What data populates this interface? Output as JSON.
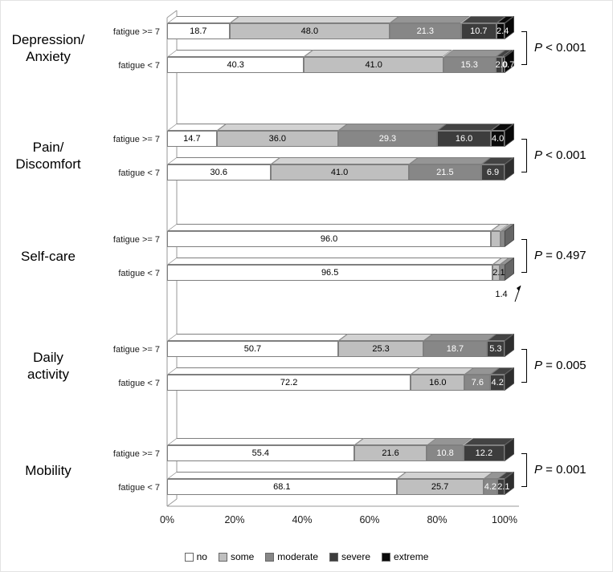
{
  "chart_data": {
    "type": "bar",
    "variant": "stacked-horizontal-3d",
    "title": "",
    "x_ticks": [
      "0%",
      "20%",
      "40%",
      "60%",
      "80%",
      "100%"
    ],
    "xlim": [
      0,
      100
    ],
    "legend_position": "bottom",
    "legend": [
      {
        "key": "no",
        "label": "no",
        "color": "#ffffff",
        "text_color": "#000000"
      },
      {
        "key": "some",
        "label": "some",
        "color": "#bfbfbf",
        "text_color": "#000000"
      },
      {
        "key": "moderate",
        "label": "moderate",
        "color": "#878787",
        "text_color": "#ffffff"
      },
      {
        "key": "severe",
        "label": "severe",
        "color": "#3d3d3d",
        "text_color": "#ffffff"
      },
      {
        "key": "extreme",
        "label": "extreme",
        "color": "#0a0a0a",
        "text_color": "#ffffff"
      }
    ],
    "groups": [
      {
        "name_lines": [
          "Depression/",
          "Anxiety"
        ],
        "p_value": "P < 0.001",
        "rows": [
          {
            "label": "fatigue >= 7",
            "segments": [
              {
                "key": "no",
                "value": 18.7,
                "label": "18.7"
              },
              {
                "key": "some",
                "value": 48.0,
                "label": "48.0"
              },
              {
                "key": "moderate",
                "value": 21.3,
                "label": "21.3"
              },
              {
                "key": "severe",
                "value": 10.7,
                "label": "10.7"
              },
              {
                "key": "extreme",
                "value": 2.4,
                "label": "2.4"
              }
            ]
          },
          {
            "label": "fatigue < 7",
            "segments": [
              {
                "key": "no",
                "value": 40.3,
                "label": "40.3"
              },
              {
                "key": "some",
                "value": 41.0,
                "label": "41.0"
              },
              {
                "key": "moderate",
                "value": 15.3,
                "label": "15.3"
              },
              {
                "key": "severe",
                "value": 2.0,
                "label": "2.0"
              },
              {
                "key": "extreme",
                "value": 0.7,
                "label": "0.7"
              }
            ]
          }
        ]
      },
      {
        "name_lines": [
          "Pain/",
          "Discomfort"
        ],
        "p_value": "P < 0.001",
        "rows": [
          {
            "label": "fatigue >= 7",
            "segments": [
              {
                "key": "no",
                "value": 14.7,
                "label": "14.7"
              },
              {
                "key": "some",
                "value": 36.0,
                "label": "36.0"
              },
              {
                "key": "moderate",
                "value": 29.3,
                "label": "29.3"
              },
              {
                "key": "severe",
                "value": 16.0,
                "label": "16.0"
              },
              {
                "key": "extreme",
                "value": 4.0,
                "label": "4.0"
              }
            ]
          },
          {
            "label": "fatigue < 7",
            "segments": [
              {
                "key": "no",
                "value": 30.6,
                "label": "30.6"
              },
              {
                "key": "some",
                "value": 41.0,
                "label": "41.0"
              },
              {
                "key": "moderate",
                "value": 21.5,
                "label": "21.5"
              },
              {
                "key": "severe",
                "value": 6.9,
                "label": "6.9"
              }
            ]
          }
        ]
      },
      {
        "name_lines": [
          "Self-care"
        ],
        "p_value": "P = 0.497",
        "rows": [
          {
            "label": "fatigue >= 7",
            "segments": [
              {
                "key": "no",
                "value": 96.0,
                "label": "96.0"
              },
              {
                "key": "some",
                "value": 2.7,
                "label": ""
              },
              {
                "key": "moderate",
                "value": 1.3,
                "label": ""
              }
            ]
          },
          {
            "label": "fatigue < 7",
            "segments": [
              {
                "key": "no",
                "value": 96.5,
                "label": "96.5"
              },
              {
                "key": "some",
                "value": 2.1,
                "label": "2.1"
              },
              {
                "key": "moderate",
                "value": 1.4,
                "label": ""
              }
            ],
            "annotation": {
              "text": "1.4"
            }
          }
        ]
      },
      {
        "name_lines": [
          "Daily",
          "activity"
        ],
        "p_value": "P = 0.005",
        "rows": [
          {
            "label": "fatigue >= 7",
            "segments": [
              {
                "key": "no",
                "value": 50.7,
                "label": "50.7"
              },
              {
                "key": "some",
                "value": 25.3,
                "label": "25.3"
              },
              {
                "key": "moderate",
                "value": 18.7,
                "label": "18.7"
              },
              {
                "key": "severe",
                "value": 5.3,
                "label": "5.3"
              }
            ]
          },
          {
            "label": "fatigue < 7",
            "segments": [
              {
                "key": "no",
                "value": 72.2,
                "label": "72.2"
              },
              {
                "key": "some",
                "value": 16.0,
                "label": "16.0"
              },
              {
                "key": "moderate",
                "value": 7.6,
                "label": "7.6"
              },
              {
                "key": "severe",
                "value": 4.2,
                "label": "4.2"
              }
            ]
          }
        ]
      },
      {
        "name_lines": [
          "Mobility"
        ],
        "p_value": "P = 0.001",
        "rows": [
          {
            "label": "fatigue >= 7",
            "segments": [
              {
                "key": "no",
                "value": 55.4,
                "label": "55.4"
              },
              {
                "key": "some",
                "value": 21.6,
                "label": "21.6"
              },
              {
                "key": "moderate",
                "value": 10.8,
                "label": "10.8"
              },
              {
                "key": "severe",
                "value": 12.2,
                "label": "12.2"
              }
            ]
          },
          {
            "label": "fatigue < 7",
            "segments": [
              {
                "key": "no",
                "value": 68.1,
                "label": "68.1"
              },
              {
                "key": "some",
                "value": 25.7,
                "label": "25.7"
              },
              {
                "key": "moderate",
                "value": 4.2,
                "label": "4.2"
              },
              {
                "key": "severe",
                "value": 2.1,
                "label": "2.1"
              }
            ]
          }
        ]
      }
    ]
  }
}
